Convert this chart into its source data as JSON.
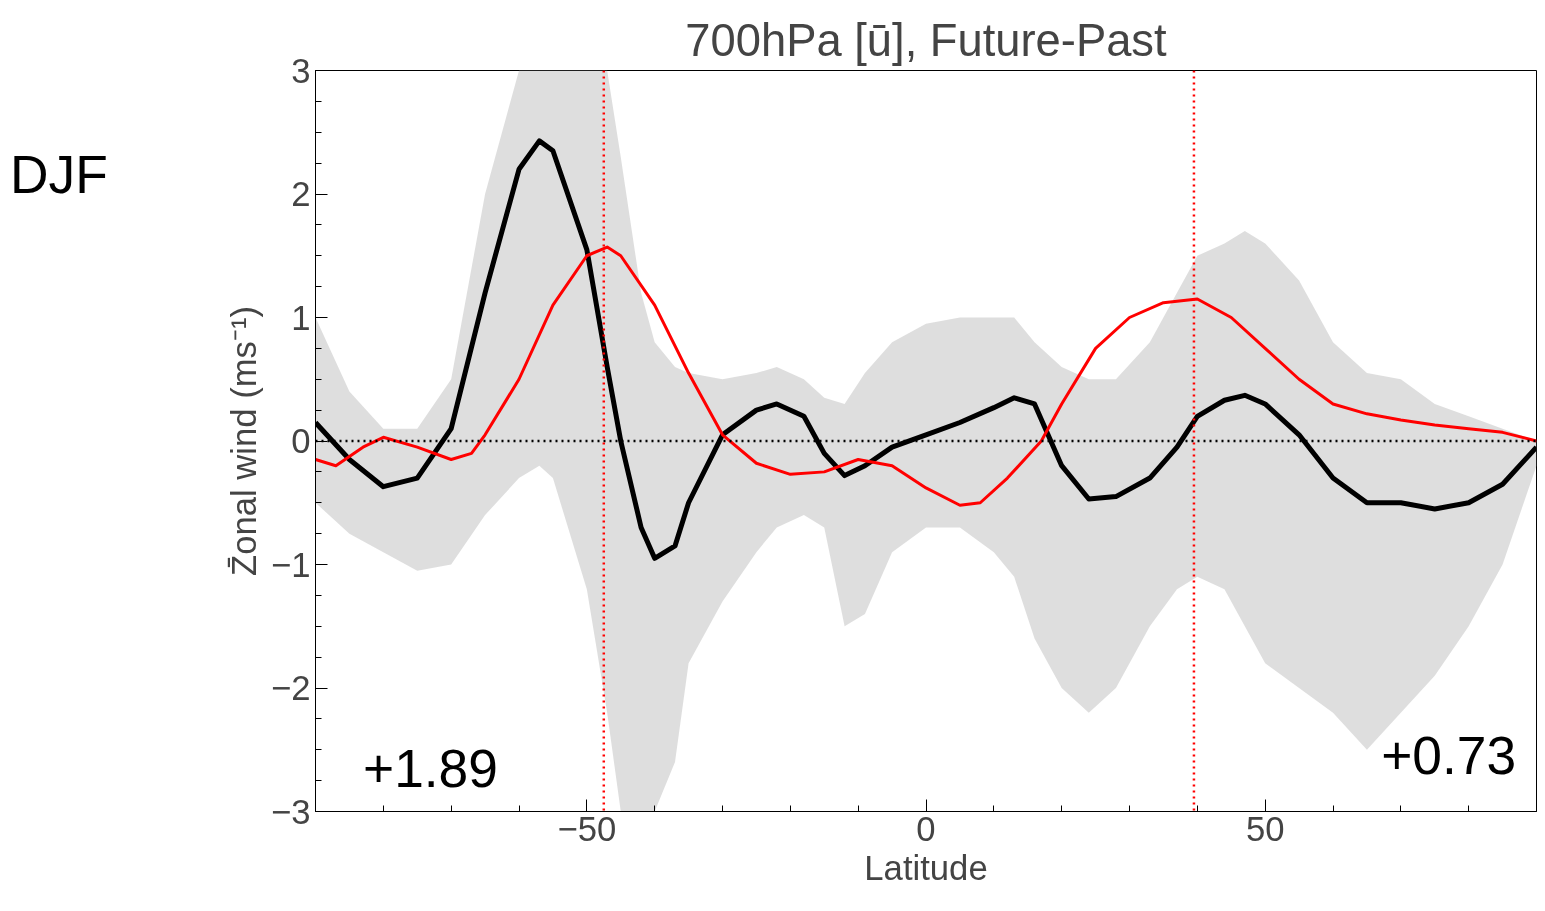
{
  "chart_data": {
    "type": "line",
    "title": "700hPa [ū], Future-Past",
    "xlabel": "Latitude",
    "ylabel": "Z̄onal wind (ms⁻¹)",
    "xlim": [
      -90,
      90
    ],
    "ylim": [
      -3,
      3
    ],
    "xticks": [
      -50,
      0,
      50
    ],
    "yticks": [
      -3,
      -2,
      -1,
      0,
      1,
      2,
      3
    ],
    "grid": false,
    "series": [
      {
        "color": "#000000",
        "x": [
          -90,
          -85,
          -80,
          -75,
          -70,
          -65,
          -60,
          -57,
          -55,
          -50,
          -47,
          -45,
          -42,
          -40,
          -37,
          -35,
          -30,
          -25,
          -22,
          -18,
          -15,
          -12,
          -9,
          -5,
          0,
          5,
          10,
          13,
          16,
          20,
          24,
          28,
          33,
          37,
          40,
          44,
          47,
          50,
          55,
          60,
          65,
          70,
          75,
          80,
          85,
          90
        ],
        "values": [
          0.15,
          -0.15,
          -0.37,
          -0.3,
          0.1,
          1.2,
          2.2,
          2.43,
          2.35,
          1.55,
          0.6,
          0,
          -0.7,
          -0.95,
          -0.85,
          -0.5,
          0.05,
          0.25,
          0.3,
          0.2,
          -0.1,
          -0.28,
          -0.2,
          -0.05,
          0.05,
          0.15,
          0.27,
          0.35,
          0.3,
          -0.2,
          -0.47,
          -0.45,
          -0.3,
          -0.05,
          0.2,
          0.33,
          0.37,
          0.3,
          0.05,
          -0.3,
          -0.5,
          -0.5,
          -0.55,
          -0.5,
          -0.35,
          -0.05
        ],
        "lower": [
          -0.5,
          -0.75,
          -0.9,
          -1.05,
          -1.0,
          -0.6,
          -0.3,
          -0.2,
          -0.3,
          -1.2,
          -2.2,
          -3,
          -3,
          -3,
          -2.6,
          -1.8,
          -1.3,
          -0.9,
          -0.7,
          -0.6,
          -0.7,
          -1.5,
          -1.4,
          -0.9,
          -0.7,
          -0.7,
          -0.9,
          -1.1,
          -1.6,
          -2.0,
          -2.2,
          -2.0,
          -1.5,
          -1.2,
          -1.1,
          -1.2,
          -1.5,
          -1.8,
          -2.0,
          -2.2,
          -2.5,
          -2.2,
          -1.9,
          -1.5,
          -1.0,
          -0.2
        ],
        "upper": [
          1.0,
          0.4,
          0.1,
          0.1,
          0.5,
          2.0,
          3,
          3,
          3,
          3,
          3,
          2.3,
          1.2,
          0.8,
          0.6,
          0.55,
          0.5,
          0.55,
          0.6,
          0.5,
          0.35,
          0.3,
          0.55,
          0.8,
          0.95,
          1.0,
          1.0,
          1.0,
          0.8,
          0.6,
          0.5,
          0.5,
          0.8,
          1.2,
          1.5,
          1.6,
          1.7,
          1.6,
          1.3,
          0.8,
          0.55,
          0.5,
          0.3,
          0.2,
          0.1,
          0.0
        ]
      },
      {
        "color": "#ff0000",
        "x": [
          -90,
          -87,
          -83,
          -80,
          -75,
          -70,
          -67,
          -65,
          -60,
          -55,
          -50,
          -47,
          -45,
          -40,
          -35,
          -30,
          -25,
          -20,
          -15,
          -10,
          -5,
          0,
          5,
          8,
          12,
          17,
          20,
          25,
          30,
          35,
          40,
          45,
          50,
          55,
          60,
          65,
          70,
          75,
          80,
          85,
          90
        ],
        "values": [
          -0.15,
          -0.2,
          -0.05,
          0.03,
          -0.05,
          -0.15,
          -0.1,
          0.05,
          0.5,
          1.1,
          1.5,
          1.57,
          1.5,
          1.1,
          0.55,
          0.05,
          -0.18,
          -0.27,
          -0.25,
          -0.15,
          -0.2,
          -0.38,
          -0.52,
          -0.5,
          -0.3,
          0,
          0.3,
          0.75,
          1.0,
          1.12,
          1.15,
          1.0,
          0.75,
          0.5,
          0.3,
          0.22,
          0.17,
          0.13,
          0.1,
          0.07,
          0.0
        ]
      }
    ],
    "ref_lines": [
      {
        "axis": "y",
        "value": 0,
        "color": "#000000",
        "line_style": "dotted"
      },
      {
        "axis": "x",
        "value": -47.5,
        "color": "#ff0000",
        "line_style": "dotted"
      },
      {
        "axis": "x",
        "value": 39.5,
        "color": "#ff0000",
        "line_style": "dotted"
      }
    ],
    "annotations": [
      "+1.89",
      "+0.73",
      "DJF"
    ]
  }
}
